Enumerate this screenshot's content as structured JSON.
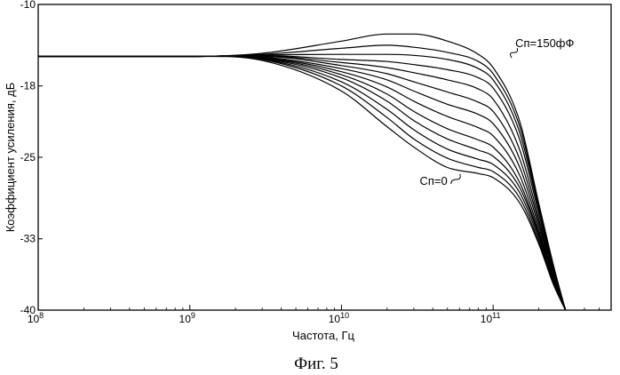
{
  "chart_data": {
    "type": "line",
    "title": "",
    "xlabel": "Частота, Гц",
    "ylabel": "Коэффициент усиления, дБ",
    "x_scale": "log",
    "xlim": [
      100000000,
      600000000000
    ],
    "ylim": [
      -40,
      -10
    ],
    "y_ticks": [
      {
        "value": -10,
        "label": "-10"
      },
      {
        "value": -18,
        "label": "-18"
      },
      {
        "value": -25,
        "label": "-25"
      },
      {
        "value": -33,
        "label": "-33"
      },
      {
        "value": -40,
        "label": "-40"
      }
    ],
    "x_ticks": [
      {
        "value": 100000000,
        "base": "10",
        "exp": "8"
      },
      {
        "value": 1000000000,
        "base": "10",
        "exp": "9"
      },
      {
        "value": 10000000000,
        "base": "10",
        "exp": "10"
      },
      {
        "value": 100000000000,
        "base": "10",
        "exp": "11"
      }
    ],
    "grid": false,
    "series": [
      {
        "x": [
          100000000.0,
          1000000000.0,
          3000000000.0,
          10000000000.0,
          20000000000.0,
          30000000000.0,
          50000000000.0,
          80000000000.0,
          100000000000.0,
          150000000000.0,
          200000000000.0,
          250000000000.0,
          300000000000.0
        ],
        "y": [
          -15.1,
          -15.1,
          -15.5,
          -18.5,
          -22,
          -24,
          -26,
          -26.6,
          -27,
          -29.5,
          -33.5,
          -37.5,
          -40
        ]
      },
      {
        "x": [
          100000000.0,
          1000000000.0,
          3000000000.0,
          10000000000.0,
          20000000000.0,
          30000000000.0,
          50000000000.0,
          80000000000.0,
          100000000000.0,
          150000000000.0,
          200000000000.0,
          250000000000.0,
          300000000000.0
        ],
        "y": [
          -15.1,
          -15.1,
          -15.4,
          -18,
          -21.1,
          -23.2,
          -25.1,
          -26,
          -26.4,
          -29,
          -33.3,
          -37.4,
          -40
        ]
      },
      {
        "x": [
          100000000.0,
          1000000000.0,
          3000000000.0,
          10000000000.0,
          20000000000.0,
          30000000000.0,
          50000000000.0,
          80000000000.0,
          100000000000.0,
          150000000000.0,
          200000000000.0,
          250000000000.0,
          300000000000.0
        ],
        "y": [
          -15.1,
          -15.1,
          -15.35,
          -17.6,
          -20.3,
          -22.3,
          -24.2,
          -25.2,
          -25.7,
          -28.5,
          -33,
          -37.3,
          -40
        ]
      },
      {
        "x": [
          100000000.0,
          1000000000.0,
          3000000000.0,
          10000000000.0,
          20000000000.0,
          30000000000.0,
          50000000000.0,
          80000000000.0,
          100000000000.0,
          150000000000.0,
          200000000000.0,
          250000000000.0,
          300000000000.0
        ],
        "y": [
          -15.1,
          -15.1,
          -15.3,
          -17.2,
          -19.5,
          -21.4,
          -23.2,
          -24.3,
          -24.9,
          -28,
          -32.7,
          -37.2,
          -40
        ]
      },
      {
        "x": [
          100000000.0,
          1000000000.0,
          3000000000.0,
          10000000000.0,
          20000000000.0,
          30000000000.0,
          50000000000.0,
          80000000000.0,
          100000000000.0,
          150000000000.0,
          200000000000.0,
          250000000000.0,
          300000000000.0
        ],
        "y": [
          -15.1,
          -15.1,
          -15.25,
          -16.9,
          -18.8,
          -20.5,
          -22.2,
          -23.3,
          -24,
          -27.5,
          -32.5,
          -37.1,
          -40
        ]
      },
      {
        "x": [
          100000000.0,
          1000000000.0,
          3000000000.0,
          10000000000.0,
          20000000000.0,
          30000000000.0,
          50000000000.0,
          80000000000.0,
          100000000000.0,
          150000000000.0,
          200000000000.0,
          250000000000.0,
          300000000000.0
        ],
        "y": [
          -15.1,
          -15.1,
          -15.2,
          -16.6,
          -18.1,
          -19.5,
          -21,
          -22.1,
          -22.9,
          -26.8,
          -32.2,
          -37,
          -40
        ]
      },
      {
        "x": [
          100000000.0,
          1000000000.0,
          3000000000.0,
          10000000000.0,
          20000000000.0,
          30000000000.0,
          50000000000.0,
          80000000000.0,
          100000000000.0,
          150000000000.0,
          200000000000.0,
          250000000000.0,
          300000000000.0
        ],
        "y": [
          -15.1,
          -15.1,
          -15.15,
          -16.3,
          -17.4,
          -18.5,
          -19.8,
          -20.8,
          -21.7,
          -26,
          -31.8,
          -36.8,
          -40
        ]
      },
      {
        "x": [
          100000000.0,
          1000000000.0,
          3000000000.0,
          10000000000.0,
          20000000000.0,
          30000000000.0,
          50000000000.0,
          80000000000.0,
          100000000000.0,
          150000000000.0,
          200000000000.0,
          250000000000.0,
          300000000000.0
        ],
        "y": [
          -15.1,
          -15.1,
          -15.1,
          -16,
          -16.8,
          -17.6,
          -18.6,
          -19.6,
          -20.5,
          -25.2,
          -31.4,
          -36.6,
          -40
        ]
      },
      {
        "x": [
          100000000.0,
          1000000000.0,
          3000000000.0,
          10000000000.0,
          20000000000.0,
          30000000000.0,
          50000000000.0,
          80000000000.0,
          100000000000.0,
          150000000000.0,
          200000000000.0,
          250000000000.0,
          300000000000.0
        ],
        "y": [
          -15.1,
          -15.1,
          -15.05,
          -15.7,
          -16.2,
          -16.7,
          -17.4,
          -18.3,
          -19.3,
          -24.3,
          -31,
          -36.4,
          -40
        ]
      },
      {
        "x": [
          100000000.0,
          1000000000.0,
          3000000000.0,
          10000000000.0,
          20000000000.0,
          30000000000.0,
          50000000000.0,
          80000000000.0,
          100000000000.0,
          150000000000.0,
          200000000000.0,
          250000000000.0,
          300000000000.0
        ],
        "y": [
          -15.1,
          -15.1,
          -15,
          -15.4,
          -15.6,
          -15.9,
          -16.4,
          -17.2,
          -18.2,
          -23.3,
          -30.5,
          -36.2,
          -40
        ]
      },
      {
        "x": [
          100000000.0,
          1000000000.0,
          3000000000.0,
          10000000000.0,
          20000000000.0,
          30000000000.0,
          50000000000.0,
          80000000000.0,
          100000000000.0,
          150000000000.0,
          200000000000.0,
          250000000000.0,
          300000000000.0
        ],
        "y": [
          -15.1,
          -15.1,
          -14.95,
          -14.9,
          -14.9,
          -15,
          -15.4,
          -16.3,
          -17.4,
          -22.6,
          -30.1,
          -36,
          -40
        ]
      },
      {
        "x": [
          100000000.0,
          1000000000.0,
          3000000000.0,
          10000000000.0,
          20000000000.0,
          30000000000.0,
          50000000000.0,
          80000000000.0,
          100000000000.0,
          150000000000.0,
          200000000000.0,
          250000000000.0,
          300000000000.0
        ],
        "y": [
          -15.1,
          -15.1,
          -14.9,
          -14.3,
          -14,
          -14.2,
          -14.7,
          -15.6,
          -16.8,
          -22,
          -29.8,
          -35.8,
          -40
        ]
      },
      {
        "x": [
          100000000.0,
          1000000000.0,
          3000000000.0,
          10000000000.0,
          20000000000.0,
          30000000000.0,
          50000000000.0,
          80000000000.0,
          100000000000.0,
          150000000000.0,
          200000000000.0,
          250000000000.0,
          300000000000.0
        ],
        "y": [
          -15.1,
          -15.1,
          -14.8,
          -13.6,
          -12.9,
          -12.9,
          -13.6,
          -14.9,
          -16.2,
          -21.5,
          -29.5,
          -35.6,
          -40
        ]
      }
    ],
    "annotations": [
      {
        "text": "Cп=150фФ",
        "x": 140000000000,
        "y": -14.2
      },
      {
        "text": "Cп=0",
        "x": 50000000000,
        "y": -27.7
      }
    ]
  },
  "caption": "Фиг. 5"
}
